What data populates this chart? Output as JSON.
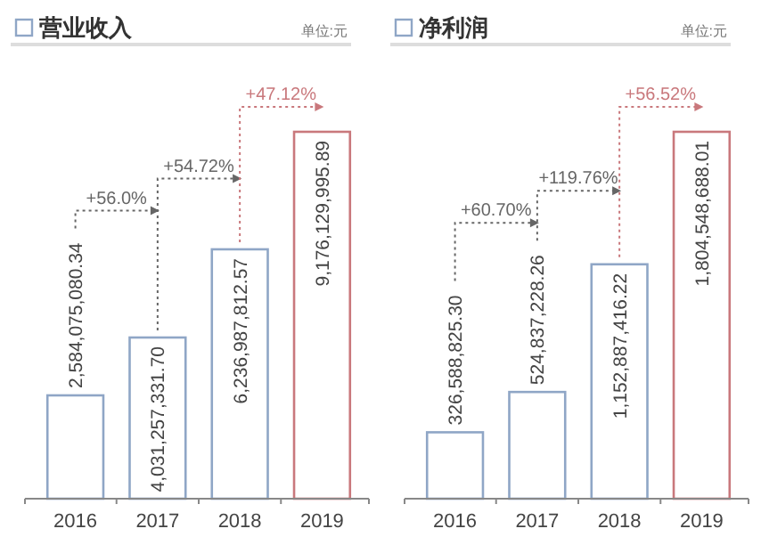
{
  "chart_data": [
    {
      "type": "bar",
      "title": "营业收入",
      "subtitle": "单位:元",
      "categories": [
        "2016",
        "2017",
        "2018",
        "2019"
      ],
      "values": [
        2584075080.34,
        4031257331.7,
        6236987812.57,
        9176129995.89
      ],
      "colors": [
        "#8fa6c6",
        "#8fa6c6",
        "#8fa6c6",
        "#c9787c"
      ],
      "value_labels": [
        "2,584,075,080.34",
        "4,031,257,331.70",
        "6,236,987,812.57",
        "9,176,129,995.89"
      ],
      "annotations": [
        "+56.0%",
        "+54.72%",
        "+47.12%"
      ]
    },
    {
      "type": "bar",
      "title": "净利润",
      "subtitle": "单位:元",
      "categories": [
        "2016",
        "2017",
        "2018",
        "2019"
      ],
      "values": [
        326588825.3,
        524837228.26,
        1152887416.22,
        1804548688.01
      ],
      "colors": [
        "#8fa6c6",
        "#8fa6c6",
        "#8fa6c6",
        "#c9787c"
      ],
      "value_labels": [
        "326,588,825.30",
        "524,837,228.26",
        "1,152,887,416.22",
        "1,804,548,688.01"
      ],
      "annotations": [
        "+60.70%",
        "+119.76%",
        "+56.52%"
      ]
    }
  ]
}
